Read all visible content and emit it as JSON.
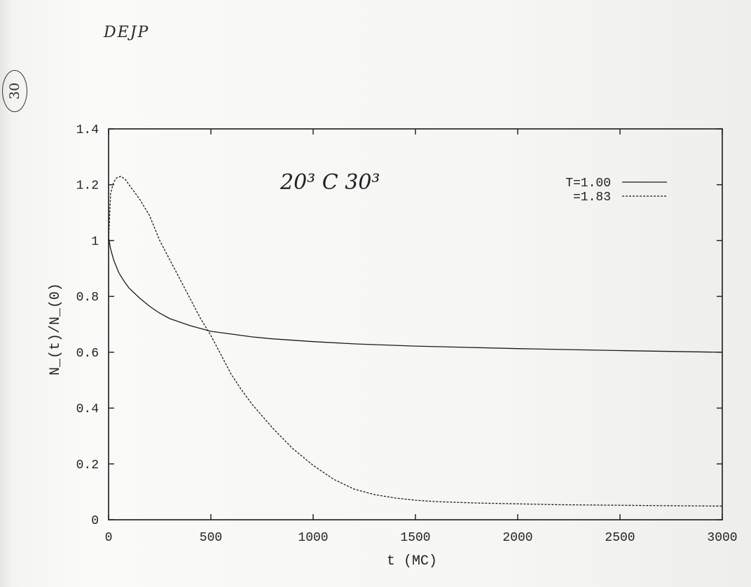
{
  "annotations": {
    "top_note": "DEJP",
    "page_number": "30",
    "plot_note": "20³ C 30³"
  },
  "chart_data": {
    "type": "line",
    "title": "",
    "xlabel": "t (MC)",
    "ylabel": "N_(t)/N_(0)",
    "xlim": [
      0,
      3000
    ],
    "ylim": [
      0,
      1.4
    ],
    "xticks": [
      0,
      500,
      1000,
      1500,
      2000,
      2500,
      3000
    ],
    "yticks": [
      0,
      0.2,
      0.4,
      0.6,
      0.8,
      1,
      1.2,
      1.4
    ],
    "xtick_labels": [
      "0",
      "500",
      "1000",
      "1500",
      "2000",
      "2500",
      "3000"
    ],
    "ytick_labels": [
      "0",
      "0.2",
      "0.4",
      "0.6",
      "0.8",
      "1",
      "1.2",
      "1.4"
    ],
    "grid": false,
    "legend_position": "top-right",
    "series": [
      {
        "name": "T=1.00",
        "style": "solid",
        "color": "#1a1a1a",
        "x": [
          0,
          10,
          25,
          50,
          75,
          100,
          150,
          200,
          250,
          300,
          400,
          500,
          600,
          700,
          800,
          1000,
          1200,
          1500,
          2000,
          2500,
          3000
        ],
        "y": [
          1.01,
          0.97,
          0.93,
          0.885,
          0.855,
          0.83,
          0.795,
          0.765,
          0.74,
          0.72,
          0.695,
          0.675,
          0.665,
          0.655,
          0.648,
          0.638,
          0.63,
          0.622,
          0.613,
          0.606,
          0.6
        ]
      },
      {
        "name": "=1.83",
        "style": "dashed",
        "color": "#1a1a1a",
        "x": [
          0,
          10,
          25,
          40,
          60,
          80,
          100,
          150,
          200,
          250,
          300,
          350,
          400,
          450,
          500,
          550,
          600,
          650,
          700,
          800,
          900,
          1000,
          1100,
          1200,
          1300,
          1400,
          1500,
          1600,
          1800,
          2000,
          2200,
          2500,
          2800,
          3000
        ],
        "y": [
          1.0,
          1.17,
          1.21,
          1.225,
          1.23,
          1.22,
          1.2,
          1.15,
          1.09,
          1.0,
          0.93,
          0.86,
          0.79,
          0.72,
          0.66,
          0.59,
          0.52,
          0.465,
          0.415,
          0.33,
          0.255,
          0.195,
          0.145,
          0.11,
          0.09,
          0.078,
          0.07,
          0.065,
          0.06,
          0.057,
          0.054,
          0.052,
          0.05,
          0.049
        ]
      }
    ]
  }
}
